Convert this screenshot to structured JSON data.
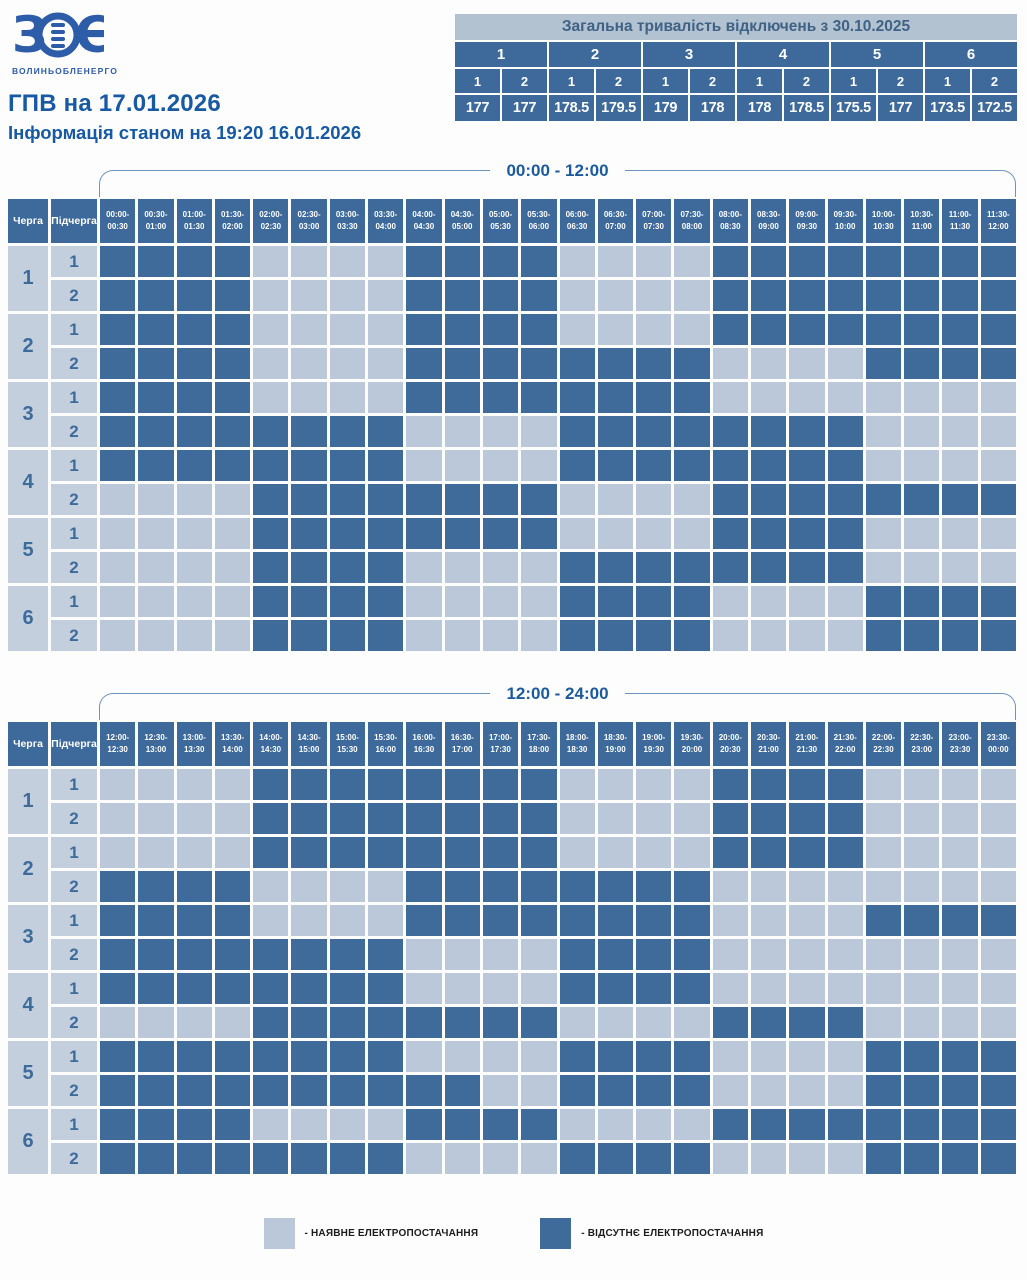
{
  "logo": {
    "letters": "ЗОЕ",
    "company": "ВОЛИНЬОБЛЕНЕРГО"
  },
  "header": {
    "title": "ГПВ на 17.01.2026",
    "subtitle": "Інформація станом на 19:20 16.01.2026"
  },
  "summary": {
    "title": "Загальна тривалість відключень з 30.10.2025",
    "queues": [
      "1",
      "2",
      "3",
      "4",
      "5",
      "6"
    ],
    "subqueues": [
      "1",
      "2",
      "1",
      "2",
      "1",
      "2",
      "1",
      "2",
      "1",
      "2",
      "1",
      "2"
    ],
    "values": [
      "177",
      "177",
      "178.5",
      "179.5",
      "179",
      "178",
      "178",
      "178.5",
      "175.5",
      "177",
      "173.5",
      "172.5"
    ]
  },
  "labels": {
    "queue_header": "Черга",
    "subqueue_header": "Підчерга"
  },
  "legend": [
    {
      "state": "on",
      "label": "- НАЯВНЕ ЕЛЕКТРОПОСТАЧАННЯ"
    },
    {
      "state": "off",
      "label": "- ВІДСУТНЄ ЕЛЕКТРОПОСТАЧАННЯ"
    }
  ],
  "colors": {
    "power_on": "#bac8d9",
    "power_off": "#3f6b9b",
    "header_bg": "#3d6a9b",
    "row_label_bg": "#c3cfdd",
    "title_text": "#1759a3",
    "summary_title_bg": "#b3c2d1",
    "bracket_line": "#6d94bd",
    "logo_blue": "#2d5ca8"
  },
  "chart_data": {
    "type": "heatmap",
    "title": "ГПВ на 17.01.2026",
    "subtitle": "Інформація станом на 19:20 16.01.2026",
    "cell_encoding": {
      "D": "відсутнє електропостачання (dark)",
      "L": "наявне електропостачання (light)"
    },
    "tables": [
      {
        "period": "00:00 - 12:00",
        "columns": [
          "00:00-00:30",
          "00:30-01:00",
          "01:00-01:30",
          "01:30-02:00",
          "02:00-02:30",
          "02:30-03:00",
          "03:00-03:30",
          "03:30-04:00",
          "04:00-04:30",
          "04:30-05:00",
          "05:00-05:30",
          "05:30-06:00",
          "06:00-06:30",
          "06:30-07:00",
          "07:00-07:30",
          "07:30-08:00",
          "08:00-08:30",
          "08:30-09:00",
          "09:00-09:30",
          "09:30-10:00",
          "10:00-10:30",
          "10:30-11:00",
          "11:00-11:30",
          "11:30-12:00"
        ],
        "rows": [
          {
            "queue": "1",
            "subqueue": "1",
            "cells": "DDDDLLLLDDDDLLLLDDDDDDDD"
          },
          {
            "queue": "1",
            "subqueue": "2",
            "cells": "DDDDLLLLDDDDLLLLDDDDDDDD"
          },
          {
            "queue": "2",
            "subqueue": "1",
            "cells": "DDDDLLLLDDDDLLLLDDDDDDDD"
          },
          {
            "queue": "2",
            "subqueue": "2",
            "cells": "DDDDLLLLDDDDDDDDLLLLDDDD"
          },
          {
            "queue": "3",
            "subqueue": "1",
            "cells": "DDDDLLLLDDDDDDDDLLLLLLLL"
          },
          {
            "queue": "3",
            "subqueue": "2",
            "cells": "DDDDDDDDLLLLDDDDDDDDLLLL"
          },
          {
            "queue": "4",
            "subqueue": "1",
            "cells": "DDDDDDDDLLLLDDDDDDDDLLLL"
          },
          {
            "queue": "4",
            "subqueue": "2",
            "cells": "LLLLDDDDDDDDLLLLDDDDDDDD"
          },
          {
            "queue": "5",
            "subqueue": "1",
            "cells": "LLLLDDDDDDDDLLLLDDDDLLLL"
          },
          {
            "queue": "5",
            "subqueue": "2",
            "cells": "LLLLDDDDLLLLDDDDDDDDLLLL"
          },
          {
            "queue": "6",
            "subqueue": "1",
            "cells": "LLLLDDDDLLLLDDDDLLLLDDDD"
          },
          {
            "queue": "6",
            "subqueue": "2",
            "cells": "LLLLDDDDLLLLDDDDLLLLDDDD"
          }
        ]
      },
      {
        "period": "12:00 - 24:00",
        "columns": [
          "12:00-12:30",
          "12:30-13:00",
          "13:00-13:30",
          "13:30-14:00",
          "14:00-14:30",
          "14:30-15:00",
          "15:00-15:30",
          "15:30-16:00",
          "16:00-16:30",
          "16:30-17:00",
          "17:00-17:30",
          "17:30-18:00",
          "18:00-18:30",
          "18:30-19:00",
          "19:00-19:30",
          "19:30-20:00",
          "20:00-20:30",
          "20:30-21:00",
          "21:00-21:30",
          "21:30-22:00",
          "22:00-22:30",
          "22:30-23:00",
          "23:00-23:30",
          "23:30-00:00"
        ],
        "rows": [
          {
            "queue": "1",
            "subqueue": "1",
            "cells": "LLLLDDDDDDDDLLLLDDDDLLLL"
          },
          {
            "queue": "1",
            "subqueue": "2",
            "cells": "LLLLDDDDDDDDLLLLDDDDLLLL"
          },
          {
            "queue": "2",
            "subqueue": "1",
            "cells": "LLLLDDDDDDDDLLLLDDDDLLLL"
          },
          {
            "queue": "2",
            "subqueue": "2",
            "cells": "DDDDLLLLDDDDDDDDLLLLLLLL"
          },
          {
            "queue": "3",
            "subqueue": "1",
            "cells": "DDDDLLLLDDDDDDDDLLLLDDDD"
          },
          {
            "queue": "3",
            "subqueue": "2",
            "cells": "DDDDDDDDLLLLDDDDLLLLLLLL"
          },
          {
            "queue": "4",
            "subqueue": "1",
            "cells": "DDDDDDDDLLLLDDDDLLLLLLLL"
          },
          {
            "queue": "4",
            "subqueue": "2",
            "cells": "LLLLDDDDDDDDLLLLDDDDLLLL"
          },
          {
            "queue": "5",
            "subqueue": "1",
            "cells": "DDDDDDDDLLLLDDDDLLLLDDDD"
          },
          {
            "queue": "5",
            "subqueue": "2",
            "cells": "DDDDDDDDDDLLDDDDLLLLDDDD"
          },
          {
            "queue": "6",
            "subqueue": "1",
            "cells": "DDDDLLLLDDDDLLLLDDDDDDDD"
          },
          {
            "queue": "6",
            "subqueue": "2",
            "cells": "DDDDDDDDLLLLDDDDLLLLDDDD"
          }
        ]
      }
    ]
  }
}
